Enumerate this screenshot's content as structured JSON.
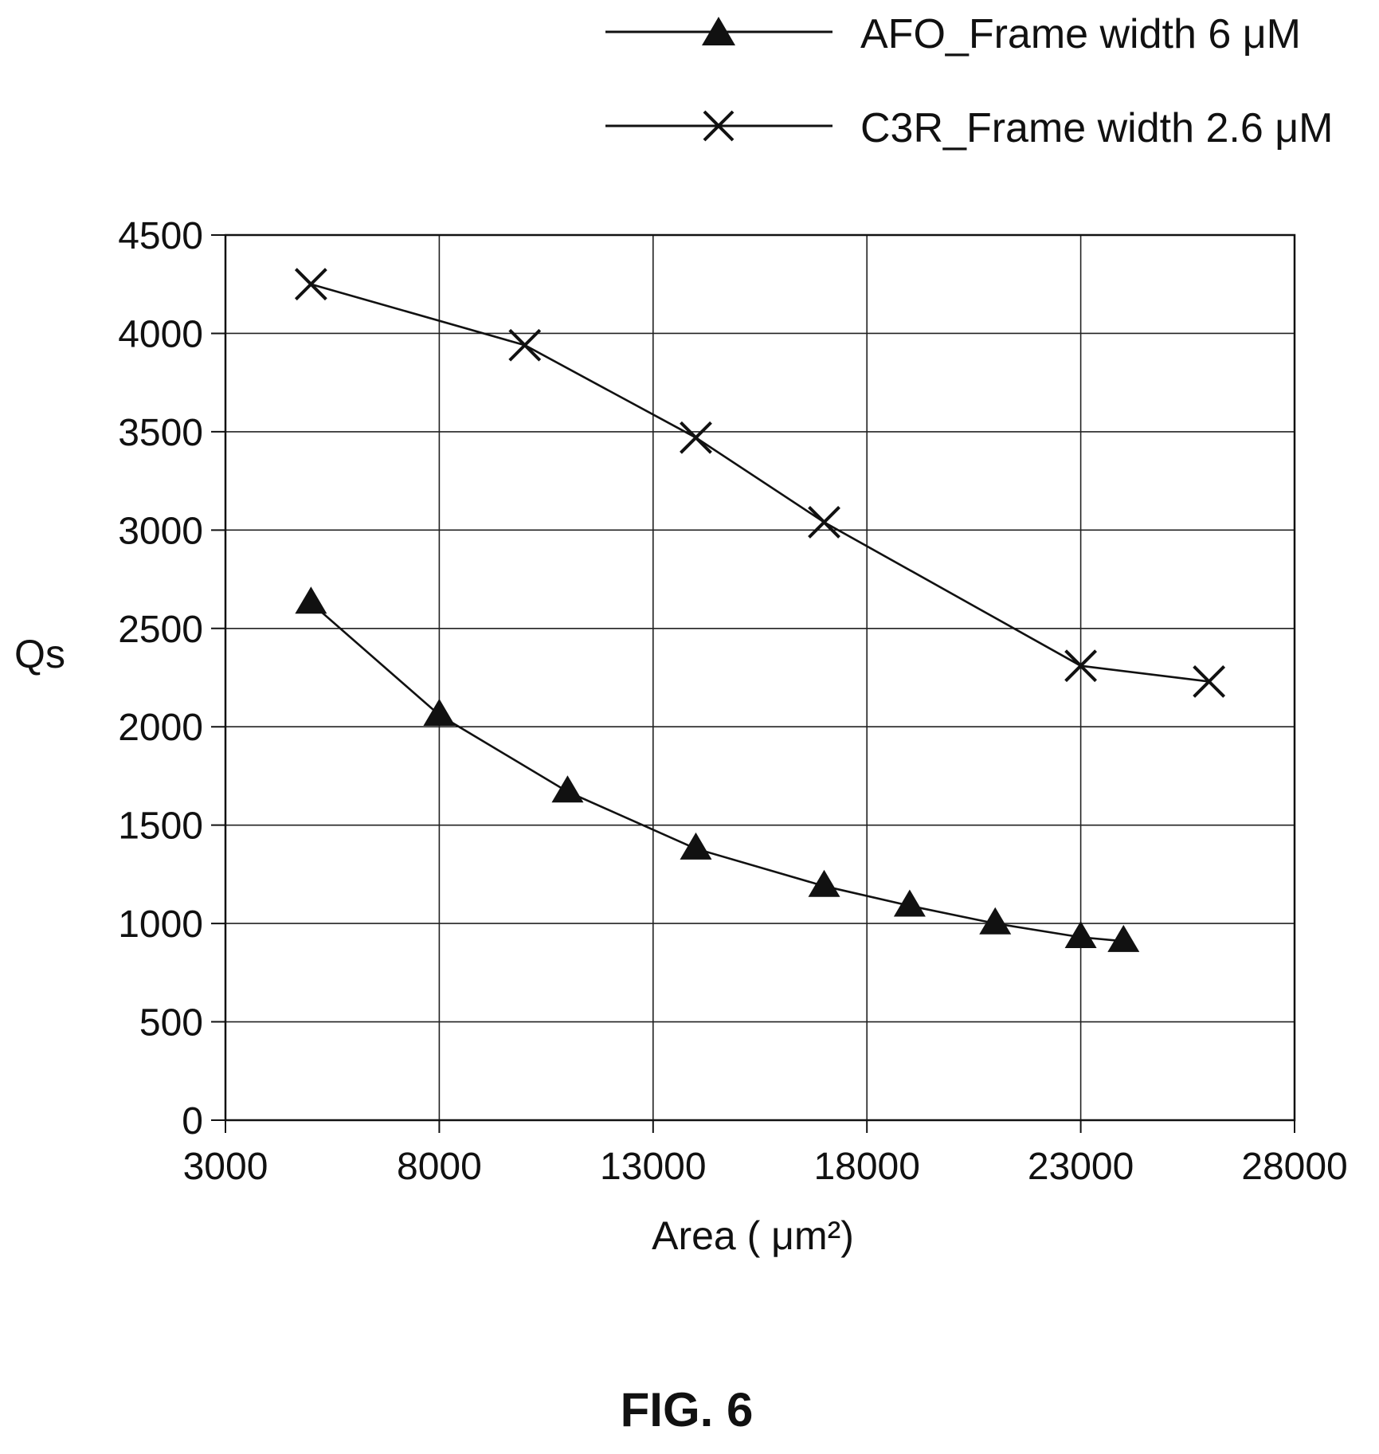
{
  "figure": {
    "caption": "FIG. 6"
  },
  "chart_data": {
    "type": "line",
    "xlabel": "Area ( μm²)",
    "ylabel": "Qs",
    "xlim": [
      3000,
      28000
    ],
    "ylim": [
      0,
      4500
    ],
    "x_ticks": [
      "3000",
      "8000",
      "13000",
      "18000",
      "23000",
      "28000"
    ],
    "y_ticks": [
      "0",
      "500",
      "1000",
      "1500",
      "2000",
      "2500",
      "3000",
      "3500",
      "4000",
      "4500"
    ],
    "grid": true,
    "legend_position": "top-right, above plot",
    "series": [
      {
        "name": "AFO_Frame width 6 μM",
        "marker": "triangle",
        "points": [
          [
            5000,
            2630
          ],
          [
            8000,
            2060
          ],
          [
            11000,
            1670
          ],
          [
            14000,
            1380
          ],
          [
            17000,
            1190
          ],
          [
            19000,
            1090
          ],
          [
            21000,
            1000
          ],
          [
            23000,
            930
          ],
          [
            24000,
            910
          ]
        ]
      },
      {
        "name": "C3R_Frame width 2.6 μM",
        "marker": "x",
        "points": [
          [
            5000,
            4250
          ],
          [
            10000,
            3940
          ],
          [
            14000,
            3470
          ],
          [
            17000,
            3040
          ],
          [
            23000,
            2310
          ],
          [
            26000,
            2230
          ]
        ]
      }
    ]
  }
}
